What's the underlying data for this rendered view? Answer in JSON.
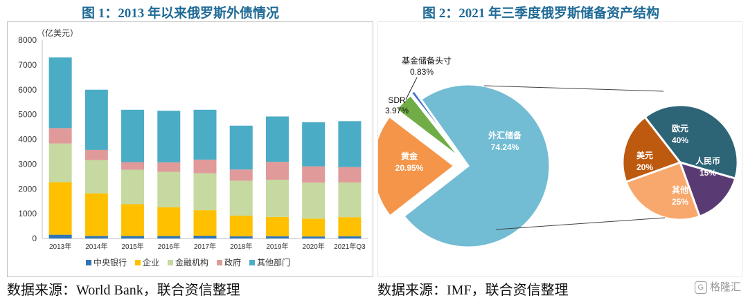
{
  "titles": {
    "left": "图 1：2013 年以来俄罗斯外债情况",
    "right": "图 2：2021 年三季度俄罗斯储备资产结构"
  },
  "sources": {
    "left": "数据来源：World Bank，联合资信整理",
    "right": "数据来源：IMF，联合资信整理"
  },
  "watermark": {
    "label": "格隆汇",
    "icon": "gelonghui-logo-icon"
  },
  "chart_data": [
    {
      "type": "bar",
      "stacked": true,
      "title": "图 1：2013 年以来俄罗斯外债情况",
      "unit_label": "（亿美元）",
      "categories": [
        "2013年",
        "2014年",
        "2015年",
        "2016年",
        "2017年",
        "2018年",
        "2019年",
        "2020年",
        "2021年Q3"
      ],
      "ylim": [
        0,
        8000
      ],
      "yticks": [
        0,
        1000,
        2000,
        3000,
        4000,
        5000,
        6000,
        7000,
        8000
      ],
      "grid": false,
      "legend_position": "bottom",
      "series": [
        {
          "name": "中央银行",
          "color": "#2e75b6",
          "values": [
            150,
            100,
            100,
            100,
            110,
            90,
            90,
            80,
            90
          ]
        },
        {
          "name": "企业",
          "color": "#ffc000",
          "values": [
            2120,
            1720,
            1280,
            1160,
            1030,
            830,
            780,
            720,
            770
          ]
        },
        {
          "name": "金融机构",
          "color": "#c5d9a0",
          "values": [
            1560,
            1340,
            1390,
            1430,
            1490,
            1410,
            1500,
            1450,
            1400
          ]
        },
        {
          "name": "政府",
          "color": "#e09a9a",
          "values": [
            620,
            410,
            310,
            380,
            550,
            450,
            720,
            660,
            620
          ]
        },
        {
          "name": "其他部门",
          "color": "#4bacc6",
          "values": [
            2850,
            2430,
            2110,
            2080,
            2010,
            1770,
            1830,
            1780,
            1850
          ]
        }
      ]
    },
    {
      "type": "pie",
      "title": "图 2：2021 年三季度俄罗斯储备资产结构",
      "slices": [
        {
          "name": "外汇储备",
          "value": 74.24,
          "label": "74.24%",
          "color": "#72bcd4"
        },
        {
          "name": "黄金",
          "value": 20.95,
          "label": "20.95%",
          "color": "#f4954a"
        },
        {
          "name": "SDR",
          "value": 3.97,
          "label": "3.97%",
          "color": "#70ad47"
        },
        {
          "name": "基金储备头寸",
          "value": 0.83,
          "label": "0.83%",
          "color": "#4472c4"
        }
      ],
      "breakout": {
        "of": "外汇储备",
        "slices": [
          {
            "name": "欧元",
            "value": 40,
            "label": "40%",
            "color": "#2d6476"
          },
          {
            "name": "人民币",
            "value": 15,
            "label": "15%",
            "color": "#5a3a73"
          },
          {
            "name": "其他",
            "value": 25,
            "label": "25%",
            "color": "#f8a86c"
          },
          {
            "name": "美元",
            "value": 20,
            "label": "20%",
            "color": "#be5a10"
          }
        ]
      }
    }
  ]
}
